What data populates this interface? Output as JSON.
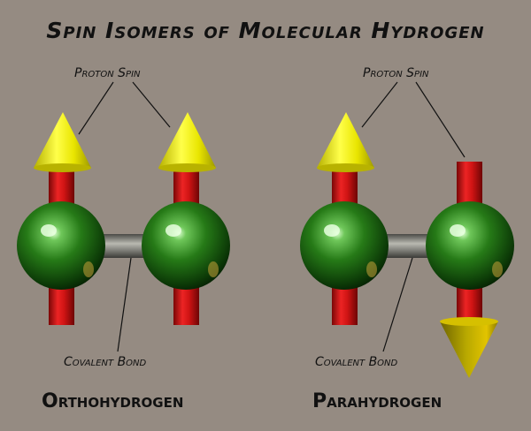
{
  "title": "Spin Isomers of Molecular Hydrogen",
  "colors": {
    "background": "#958b82",
    "proton_sphere": "#1f6e13",
    "spin_shaft": "#d41616",
    "spin_cone": "#e6e300",
    "bond": "#7c7c76"
  },
  "ortho": {
    "name": "Orthohydrogen",
    "proton_spin_label": "Proton Spin",
    "bond_label": "Covalent Bond",
    "spins": [
      "up",
      "up"
    ]
  },
  "para": {
    "name": "Parahydrogen",
    "proton_spin_label": "Proton Spin",
    "bond_label": "Covalent Bond",
    "spins": [
      "up",
      "down"
    ]
  }
}
